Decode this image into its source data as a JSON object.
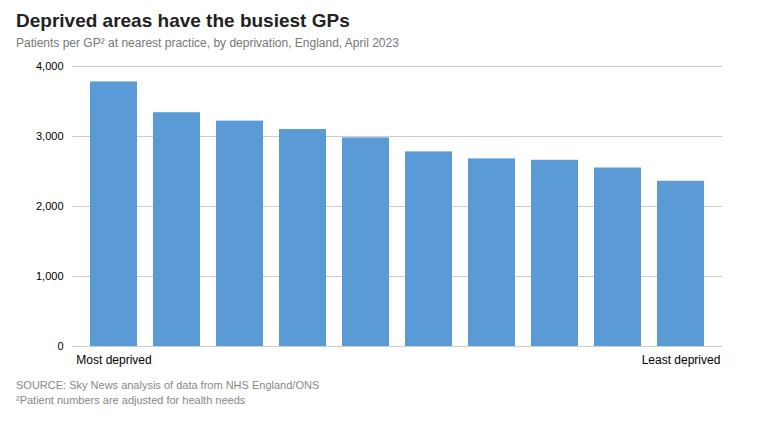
{
  "chart_data": {
    "type": "bar",
    "title": "Deprived areas have the busiest GPs",
    "subtitle": "Patients per GP² at nearest practice, by deprivation, England, April 2023",
    "categories": [
      "Most deprived",
      null,
      null,
      null,
      null,
      null,
      null,
      null,
      null,
      "Least deprived"
    ],
    "values": [
      3780,
      3340,
      3220,
      3100,
      2980,
      2780,
      2680,
      2660,
      2550,
      2360
    ],
    "color": "#5b9bd5",
    "ylim": [
      0,
      4000
    ],
    "yticks": [
      0,
      {
        "value": 1000,
        "label": "1,000"
      },
      {
        "value": 2000,
        "label": "2,000"
      },
      {
        "value": 3000,
        "label": "3,000"
      },
      {
        "value": 4000,
        "label": "4,000"
      }
    ],
    "grid": true,
    "caption": [
      "SOURCE: Sky News analysis of data from NHS England/ONS",
      "²Patient numbers are adjusted for health needs"
    ]
  }
}
